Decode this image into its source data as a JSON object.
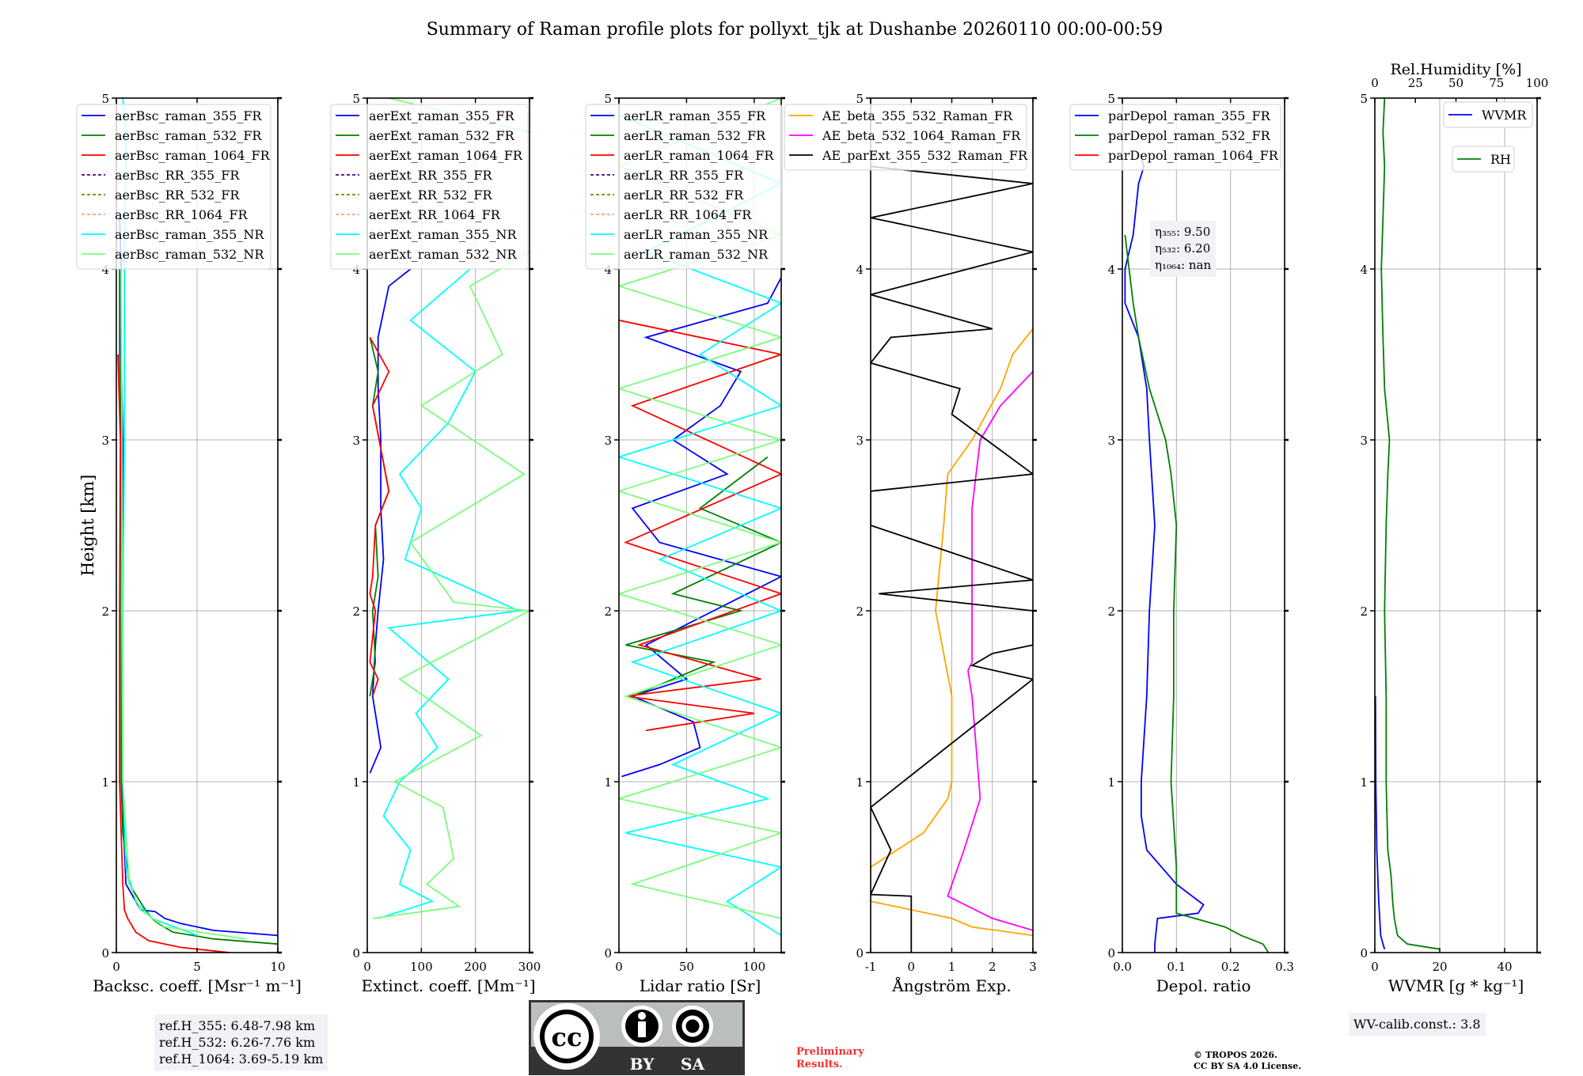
{
  "title": "Summary of Raman profile plots for pollyxt_tjk at Dushanbe 20260110 00:00-00:59",
  "chart_data": [
    {
      "type": "line",
      "xlabel": "Backsc. coeff. [Msr⁻¹ m⁻¹]",
      "ylabel": "Height [km]",
      "xlim": [
        0,
        10
      ],
      "ylim": [
        0,
        5
      ],
      "xticks": [
        0,
        5,
        10
      ],
      "yticks": [
        0,
        1,
        2,
        3,
        4,
        5
      ],
      "grid": true,
      "legend_placement": "top-left",
      "series": [
        {
          "name": "aerBsc_raman_355_FR",
          "color": "#0000ff",
          "dash": false,
          "h": [
            0.1,
            0.13,
            0.17,
            0.2,
            0.24,
            0.25,
            0.4,
            0.7,
            1,
            2,
            3,
            3.5,
            4,
            4.3
          ],
          "v": [
            10,
            6,
            4,
            3,
            2.4,
            1.5,
            0.6,
            0.45,
            0.35,
            0.35,
            0.4,
            0.3,
            0.3,
            0.2
          ]
        },
        {
          "name": "aerBsc_raman_532_FR",
          "color": "#008000",
          "dash": false,
          "h": [
            0.05,
            0.08,
            0.12,
            0.17,
            0.2,
            0.25,
            0.4,
            0.7,
            1,
            2,
            3,
            3.5,
            4
          ],
          "v": [
            10,
            6,
            3.5,
            2.6,
            2.2,
            1.8,
            0.8,
            0.4,
            0.3,
            0.3,
            0.3,
            0.2,
            0.2
          ]
        },
        {
          "name": "aerBsc_raman_1064_FR",
          "color": "#ff0000",
          "dash": false,
          "h": [
            0,
            0.03,
            0.07,
            0.12,
            0.2,
            0.25,
            0.4,
            0.7,
            1,
            2,
            3,
            3.5
          ],
          "v": [
            7,
            4,
            2,
            1.2,
            0.7,
            0.5,
            0.4,
            0.3,
            0.2,
            0.2,
            0.25,
            0.1
          ]
        },
        {
          "name": "aerBsc_RR_355_FR",
          "color": "#4b0082",
          "dash": true,
          "h": [],
          "v": []
        },
        {
          "name": "aerBsc_RR_532_FR",
          "color": "#808000",
          "dash": true,
          "h": [],
          "v": []
        },
        {
          "name": "aerBsc_RR_1064_FR",
          "color": "#ffa07a",
          "dash": true,
          "h": [],
          "v": []
        },
        {
          "name": "aerBsc_raman_355_NR",
          "color": "#00ffff",
          "dash": false,
          "h": [
            0.1,
            0.2,
            0.3,
            0.5,
            1,
            2,
            3,
            4,
            4.8,
            5
          ],
          "v": [
            5,
            2.2,
            1.2,
            0.6,
            0.4,
            0.4,
            0.5,
            0.5,
            0.6,
            0.4
          ]
        },
        {
          "name": "aerBsc_raman_532_NR",
          "color": "#7cfc7c",
          "dash": false,
          "h": [
            0.08,
            0.15,
            0.25,
            0.4,
            1,
            2,
            3,
            4
          ],
          "v": [
            8,
            3,
            1.5,
            0.8,
            0.4,
            0.35,
            0.35,
            0.3
          ]
        }
      ]
    },
    {
      "type": "line",
      "xlabel": "Extinct. coeff. [Mm⁻¹]",
      "xlim": [
        0,
        300
      ],
      "ylim": [
        0,
        5
      ],
      "xticks": [
        0,
        100,
        200,
        300
      ],
      "yticks": [
        0,
        1,
        2,
        3,
        4,
        5
      ],
      "grid": true,
      "legend_placement": "top-left",
      "series": [
        {
          "name": "aerExt_raman_355_FR",
          "color": "#0000ff",
          "dash": false,
          "h": [
            1.05,
            1.2,
            1.3,
            1.5,
            1.8,
            2,
            2.3,
            2.6,
            3,
            3.3,
            3.6,
            3.9,
            4.0
          ],
          "v": [
            5,
            25,
            20,
            10,
            15,
            20,
            30,
            25,
            25,
            20,
            20,
            40,
            80
          ]
        },
        {
          "name": "aerExt_raman_532_FR",
          "color": "#008000",
          "dash": false,
          "h": [
            1.5,
            1.7,
            2.0,
            2.2,
            2.5,
            2.7,
            3.2,
            3.4,
            3.6
          ],
          "v": [
            5,
            15,
            10,
            20,
            15,
            40,
            10,
            20,
            5
          ]
        },
        {
          "name": "aerExt_raman_1064_FR",
          "color": "#ff0000",
          "dash": false,
          "h": [
            1.5,
            1.6,
            1.7,
            2.0,
            2.1,
            2.2,
            2.5,
            2.7,
            3.2,
            3.3,
            3.4,
            3.6
          ],
          "v": [
            10,
            20,
            5,
            15,
            5,
            10,
            15,
            40,
            10,
            25,
            40,
            5
          ]
        },
        {
          "name": "aerExt_RR_355_FR",
          "color": "#4b0082",
          "dash": true,
          "h": [],
          "v": []
        },
        {
          "name": "aerExt_RR_532_FR",
          "color": "#808000",
          "dash": true,
          "h": [],
          "v": []
        },
        {
          "name": "aerExt_RR_1064_FR",
          "color": "#ffa07a",
          "dash": true,
          "h": [],
          "v": []
        },
        {
          "name": "aerExt_raman_355_NR",
          "color": "#00ffff",
          "dash": false,
          "h": [
            0.2,
            0.3,
            0.4,
            0.6,
            0.8,
            1.0,
            1.2,
            1.4,
            1.6,
            1.9,
            2.0,
            2.3,
            2.6,
            2.8,
            3.1,
            3.4,
            3.7,
            4.0
          ],
          "v": [
            20,
            120,
            60,
            80,
            30,
            60,
            130,
            90,
            150,
            40,
            280,
            70,
            100,
            60,
            150,
            200,
            80,
            190
          ]
        },
        {
          "name": "aerExt_raman_532_NR",
          "color": "#7cfc7c",
          "dash": false,
          "h": [
            0.2,
            0.27,
            0.4,
            0.55,
            0.85,
            1.0,
            1.27,
            1.6,
            2.0,
            2.05,
            2.4,
            2.8,
            3.2,
            3.5,
            3.9,
            4.1,
            4.8,
            5.0
          ],
          "v": [
            10,
            170,
            110,
            160,
            140,
            50,
            210,
            60,
            300,
            160,
            80,
            290,
            100,
            250,
            190,
            300,
            300,
            40
          ]
        }
      ]
    },
    {
      "type": "line",
      "xlabel": "Lidar ratio [Sr]",
      "xlim": [
        0,
        120
      ],
      "ylim": [
        0,
        5
      ],
      "xticks": [
        0,
        50,
        100
      ],
      "yticks": [
        0,
        1,
        2,
        3,
        4,
        5
      ],
      "grid": true,
      "legend_placement": "top-left",
      "series": [
        {
          "name": "aerLR_raman_355_FR",
          "color": "#0000ff",
          "dash": false,
          "h": [
            1.03,
            1.1,
            1.2,
            1.35,
            1.5,
            1.6,
            1.8,
            2.0,
            2.2,
            2.4,
            2.6,
            2.8,
            3.0,
            3.2,
            3.4,
            3.6,
            3.8,
            3.95
          ],
          "v": [
            2,
            30,
            60,
            55,
            10,
            50,
            20,
            70,
            120,
            30,
            10,
            80,
            40,
            75,
            90,
            20,
            110,
            120
          ]
        },
        {
          "name": "aerLR_raman_532_FR",
          "color": "#008000",
          "dash": false,
          "h": [
            1.5,
            1.7,
            1.8,
            2.0,
            2.1,
            2.4,
            2.6,
            2.9
          ],
          "v": [
            10,
            70,
            5,
            90,
            40,
            120,
            60,
            110
          ]
        },
        {
          "name": "aerLR_raman_1064_FR",
          "color": "#ff0000",
          "dash": false,
          "h": [
            1.3,
            1.4,
            1.5,
            1.6,
            1.8,
            2.1,
            2.4,
            2.8,
            3.2,
            3.5,
            3.7
          ],
          "v": [
            20,
            100,
            5,
            105,
            15,
            120,
            5,
            120,
            10,
            120,
            0
          ]
        },
        {
          "name": "aerLR_RR_355_FR",
          "color": "#4b0082",
          "dash": true,
          "h": [],
          "v": []
        },
        {
          "name": "aerLR_RR_532_FR",
          "color": "#808000",
          "dash": true,
          "h": [],
          "v": []
        },
        {
          "name": "aerLR_RR_1064_FR",
          "color": "#ffa07a",
          "dash": true,
          "h": [],
          "v": []
        },
        {
          "name": "aerLR_raman_355_NR",
          "color": "#00ffff",
          "dash": false,
          "h": [
            0.1,
            0.3,
            0.5,
            0.7,
            0.9,
            1.1,
            1.4,
            1.7,
            2.0,
            2.3,
            2.6,
            2.9,
            3.2,
            3.5,
            3.8,
            4.1,
            4.5,
            4.9
          ],
          "v": [
            120,
            80,
            120,
            5,
            110,
            40,
            120,
            10,
            120,
            30,
            120,
            0,
            120,
            60,
            120,
            20,
            120,
            0
          ]
        },
        {
          "name": "aerLR_raman_532_NR",
          "color": "#7cfc7c",
          "dash": false,
          "h": [
            0.2,
            0.4,
            0.7,
            0.9,
            1.2,
            1.5,
            1.8,
            2.1,
            2.4,
            2.7,
            3.0,
            3.3,
            3.6,
            3.9,
            4.2,
            4.6,
            5.0
          ],
          "v": [
            120,
            10,
            120,
            0,
            120,
            5,
            120,
            0,
            120,
            0,
            120,
            0,
            120,
            0,
            120,
            0,
            120
          ]
        }
      ]
    },
    {
      "type": "line",
      "xlabel": "Ångström Exp.",
      "xlim": [
        -1,
        3
      ],
      "ylim": [
        0,
        5
      ],
      "xticks": [
        -1,
        0,
        1,
        2,
        3
      ],
      "yticks": [
        0,
        1,
        2,
        3,
        4,
        5
      ],
      "grid": true,
      "legend_placement": "top-left",
      "series": [
        {
          "name": "AE_beta_355_532_Raman_FR",
          "color": "#ffa500",
          "dash": false,
          "h": [
            0.1,
            0.15,
            0.2,
            0.3,
            0.5,
            0.7,
            0.9,
            1.0,
            1.5,
            2.0,
            2.5,
            2.8,
            3.0,
            3.3,
            3.5,
            3.65
          ],
          "v": [
            3,
            1.5,
            1.0,
            -1,
            -1,
            0.3,
            0.9,
            1.0,
            1.0,
            0.6,
            0.8,
            0.9,
            1.5,
            2.2,
            2.5,
            3
          ]
        },
        {
          "name": "AE_beta_532_1064_Raman_FR",
          "color": "#ff00ff",
          "dash": false,
          "h": [
            0.13,
            0.2,
            0.33,
            0.6,
            0.9,
            1.2,
            1.5,
            1.65,
            1.7,
            2.0,
            2.6,
            3.0,
            3.2,
            3.4
          ],
          "v": [
            3,
            2,
            0.9,
            1.3,
            1.7,
            1.6,
            1.5,
            1.4,
            1.5,
            1.5,
            1.5,
            1.7,
            2.2,
            3
          ]
        },
        {
          "name": "AE_parExt_355_532_Raman_FR",
          "color": "#000000",
          "dash": false,
          "h": [
            0,
            0.33,
            0.34,
            0.6,
            0.85,
            1.6,
            1.68,
            1.75,
            1.8,
            2.0,
            2.1,
            2.18,
            2.5,
            2.7,
            2.8,
            3.15,
            3.3,
            3.45,
            3.6,
            3.65,
            3.85,
            4.1,
            4.3,
            4.5,
            4.6
          ],
          "v": [
            0,
            0,
            -1,
            -0.5,
            -1,
            3,
            1.5,
            2,
            3,
            3,
            -0.8,
            3,
            -1,
            -1,
            3,
            1,
            1.2,
            -1,
            -0.5,
            2,
            -1,
            3,
            -1,
            3,
            -1
          ]
        }
      ]
    },
    {
      "type": "line",
      "xlabel": "Depol. ratio",
      "xlim": [
        0,
        0.3
      ],
      "ylim": [
        0,
        5
      ],
      "xticks": [
        0.0,
        0.1,
        0.2,
        0.3
      ],
      "yticks": [
        0,
        1,
        2,
        3,
        4,
        5
      ],
      "grid": true,
      "legend_placement": "top-left",
      "series": [
        {
          "name": "parDepol_raman_355_FR",
          "color": "#0000ff",
          "dash": false,
          "h": [
            0.0,
            0.05,
            0.2,
            0.23,
            0.28,
            0.4,
            0.6,
            0.8,
            1.0,
            1.5,
            2.0,
            2.5,
            3.0,
            3.3,
            3.6,
            3.8,
            4.0,
            4.2,
            4.5,
            4.6,
            4.65
          ],
          "v": [
            0.06,
            0.06,
            0.065,
            0.14,
            0.15,
            0.1,
            0.045,
            0.035,
            0.035,
            0.045,
            0.05,
            0.06,
            0.05,
            0.045,
            0.03,
            0.005,
            0.005,
            0.02,
            0.03,
            0.04,
            0.035
          ]
        },
        {
          "name": "parDepol_raman_532_FR",
          "color": "#008000",
          "dash": false,
          "h": [
            0.0,
            0.05,
            0.1,
            0.15,
            0.23,
            0.3,
            0.5,
            1.0,
            1.5,
            2.0,
            2.5,
            2.8,
            3.0,
            3.3,
            3.6,
            3.8,
            4.2
          ],
          "v": [
            0.27,
            0.26,
            0.22,
            0.19,
            0.1,
            0.1,
            0.1,
            0.09,
            0.095,
            0.095,
            0.1,
            0.09,
            0.08,
            0.05,
            0.03,
            0.02,
            0.005
          ]
        },
        {
          "name": "parDepol_raman_1064_FR",
          "color": "#ff0000",
          "dash": false,
          "h": [],
          "v": []
        }
      ]
    },
    {
      "type": "line",
      "xlabel": "WVMR [g * kg⁻¹]",
      "top_xlabel": "Rel.Humidity [%]",
      "xlim": [
        0,
        50
      ],
      "top_xlim": [
        0,
        100
      ],
      "ylim": [
        0,
        5
      ],
      "xticks": [
        0,
        20,
        40
      ],
      "top_xticks": [
        0,
        25,
        50,
        75,
        100
      ],
      "yticks": [
        0,
        1,
        2,
        3,
        4,
        5
      ],
      "grid": true,
      "legend_placement": "top-right",
      "series": [
        {
          "name": "WVMR",
          "color": "#0000ff",
          "dash": false,
          "axis": "bottom",
          "h": [
            0.02,
            0.05,
            0.1,
            0.3,
            0.6,
            1.0,
            1.5
          ],
          "v": [
            3,
            2.5,
            1.8,
            1.2,
            0.6,
            0.3,
            0.2
          ]
        },
        {
          "name": "RH",
          "color": "#008000",
          "dash": false,
          "axis": "top",
          "h": [
            0.02,
            0.05,
            0.1,
            0.2,
            0.3,
            0.45,
            0.6,
            1.0,
            1.5,
            2.0,
            2.5,
            2.8,
            3.0,
            3.3,
            3.6,
            4.0,
            4.3,
            4.6,
            4.8,
            5.0
          ],
          "v": [
            40,
            20,
            14,
            12,
            11,
            10,
            8,
            7,
            7,
            6,
            7,
            8,
            9,
            6,
            5,
            4,
            5,
            6,
            5,
            6
          ]
        }
      ]
    }
  ],
  "annotations": {
    "eta": [
      "η₃₅₅: 9.50",
      "η₅₃₂: 6.20",
      "η₁₀₆₄: nan"
    ],
    "ref_heights": [
      "ref.H_355: 6.48-7.98 km",
      "ref.H_532: 6.26-7.76 km",
      "ref.H_1064: 3.69-5.19 km"
    ],
    "wv_calib": "WV-calib.const.: 3.8",
    "preliminary": [
      "Preliminary",
      "Results."
    ],
    "copyright": [
      "© TROPOS 2026.",
      "CC BY SA 4.0 License."
    ],
    "license_logo": {
      "by": "BY",
      "sa": "SA",
      "cc": "cc"
    }
  }
}
